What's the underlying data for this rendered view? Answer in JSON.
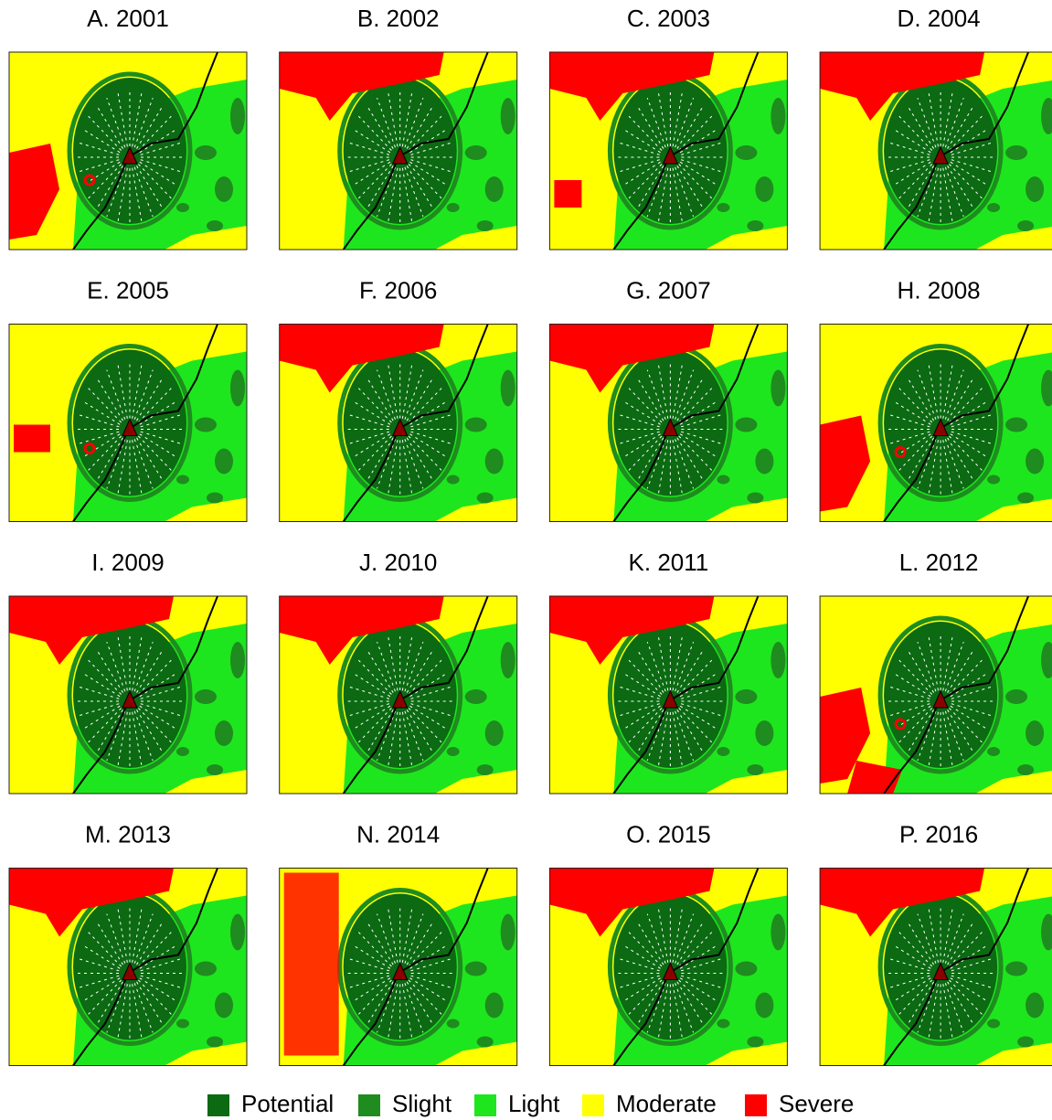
{
  "panels": [
    {
      "title": "A. 2001"
    },
    {
      "title": "B. 2002"
    },
    {
      "title": "C. 2003"
    },
    {
      "title": "D. 2004"
    },
    {
      "title": "E. 2005"
    },
    {
      "title": "F. 2006"
    },
    {
      "title": "G. 2007"
    },
    {
      "title": "H. 2008"
    },
    {
      "title": "I. 2009"
    },
    {
      "title": "J. 2010"
    },
    {
      "title": "K. 2011"
    },
    {
      "title": "L. 2012"
    },
    {
      "title": "M. 2013"
    },
    {
      "title": "N. 2014"
    },
    {
      "title": "O. 2015"
    },
    {
      "title": "P. 2016"
    }
  ],
  "legend": [
    {
      "label": "Potential",
      "color": "#0b6a12"
    },
    {
      "label": "Slight",
      "color": "#1f8c1f"
    },
    {
      "label": "Light",
      "color": "#1ee61e"
    },
    {
      "label": "Moderate",
      "color": "#ffff00"
    },
    {
      "label": "Severe",
      "color": "#ff0000"
    }
  ]
}
